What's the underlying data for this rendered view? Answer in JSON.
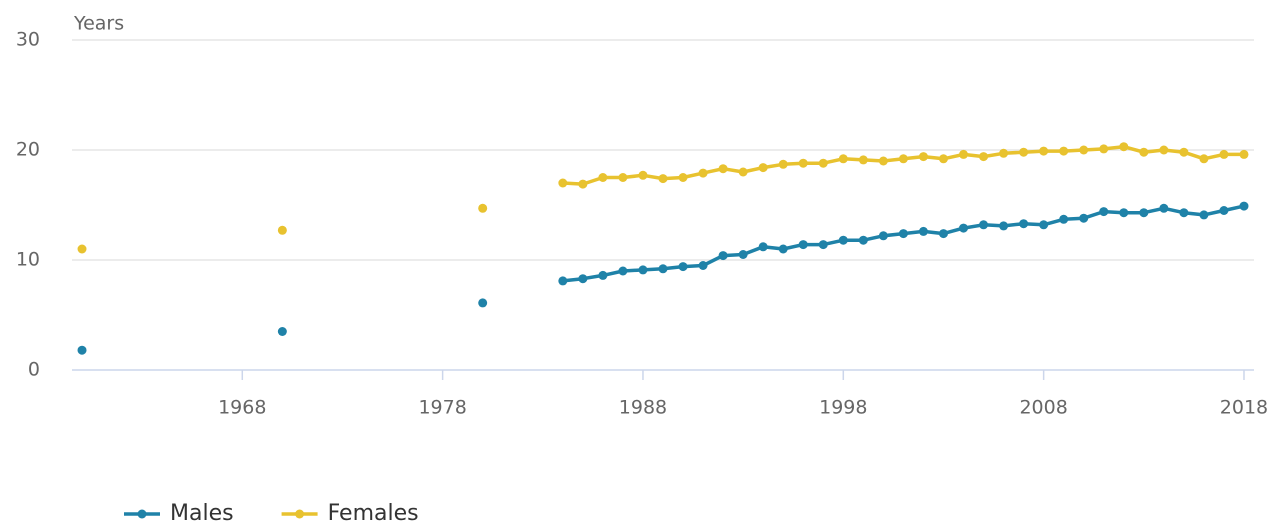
{
  "chart_data": {
    "type": "line",
    "y_label": "Years",
    "x": [
      1960,
      1961,
      1962,
      1963,
      1964,
      1965,
      1966,
      1967,
      1968,
      1969,
      1970,
      1971,
      1972,
      1973,
      1974,
      1975,
      1976,
      1977,
      1978,
      1979,
      1980,
      1981,
      1982,
      1983,
      1984,
      1985,
      1986,
      1987,
      1988,
      1989,
      1990,
      1991,
      1992,
      1993,
      1994,
      1995,
      1996,
      1997,
      1998,
      1999,
      2000,
      2001,
      2002,
      2003,
      2004,
      2005,
      2006,
      2007,
      2008,
      2009,
      2010,
      2011,
      2012,
      2013,
      2014,
      2015,
      2016,
      2017,
      2018
    ],
    "series": [
      {
        "name": "Males",
        "color": "#1f82a8",
        "values": [
          1.8,
          null,
          null,
          null,
          null,
          null,
          null,
          null,
          null,
          null,
          3.5,
          null,
          null,
          null,
          null,
          null,
          null,
          null,
          null,
          null,
          6.1,
          null,
          null,
          null,
          8.1,
          8.3,
          8.6,
          9.0,
          9.1,
          9.2,
          9.4,
          9.5,
          10.4,
          10.5,
          11.2,
          11.0,
          11.4,
          11.4,
          11.8,
          11.8,
          12.2,
          12.4,
          12.6,
          12.4,
          12.9,
          13.2,
          13.1,
          13.3,
          13.2,
          13.7,
          13.8,
          14.4,
          14.3,
          14.3,
          14.7,
          14.3,
          14.1,
          14.5,
          14.9
        ]
      },
      {
        "name": "Females",
        "color": "#e8c22f",
        "values": [
          11.0,
          null,
          null,
          null,
          null,
          null,
          null,
          null,
          null,
          null,
          12.7,
          null,
          null,
          null,
          null,
          null,
          null,
          null,
          null,
          null,
          14.7,
          null,
          null,
          null,
          17.0,
          16.9,
          17.5,
          17.5,
          17.7,
          17.4,
          17.5,
          17.9,
          18.3,
          18.0,
          18.4,
          18.7,
          18.8,
          18.8,
          19.2,
          19.1,
          19.0,
          19.2,
          19.4,
          19.2,
          19.6,
          19.4,
          19.7,
          19.8,
          19.9,
          19.9,
          20.0,
          20.1,
          20.3,
          19.8,
          20.0,
          19.8,
          19.2,
          19.6,
          19.6
        ]
      }
    ],
    "xlim": [
      1959.5,
      2018.5
    ],
    "xticks": [
      1968,
      1978,
      1988,
      1998,
      2008,
      2018
    ],
    "ylim": [
      0,
      30
    ],
    "yticks": [
      0,
      10,
      20,
      30
    ],
    "grid": true
  }
}
